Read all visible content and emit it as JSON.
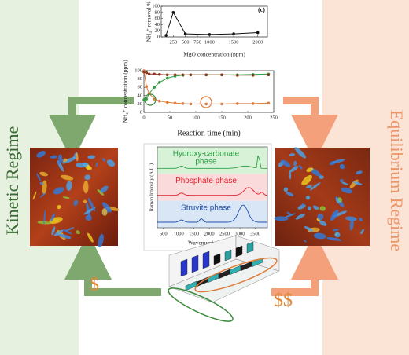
{
  "labels": {
    "kinetic": "Kinetic Regime",
    "equilibrium": "Equilibrium Regime",
    "cost_low": "$",
    "cost_high": "$$"
  },
  "raman": {
    "y_label": "Raman Intensity (A.U.)",
    "x_label": "Wavenumber (cm⁻¹)",
    "xlim": [
      300,
      3900
    ],
    "xticks": [
      500,
      1000,
      1500,
      2000,
      2500,
      3000,
      3500
    ],
    "phases": [
      {
        "lines": [
          "Hydroxy-carbonate",
          "phase"
        ],
        "color": "#2aa040"
      },
      {
        "lines": [
          "Phosphate phase"
        ],
        "color": "#e0202a"
      },
      {
        "lines": [
          "Struvite phase"
        ],
        "color": "#2050b0"
      }
    ]
  },
  "chart_data": [
    {
      "type": "line",
      "title": "(c)",
      "y_label": "NH₄⁺ removal %",
      "x_label": "MgO concentration (ppm)",
      "x": [
        100,
        250,
        500,
        1000,
        1500,
        2000
      ],
      "series": [
        {
          "color": "#111111",
          "values": [
            5,
            80,
            10,
            8,
            10,
            14
          ]
        }
      ],
      "xlim": [
        0,
        2200
      ],
      "xticks": [
        250,
        500,
        750,
        1000,
        1500,
        2000
      ],
      "ylim": [
        0,
        100
      ],
      "yticks": [
        0,
        20,
        40,
        60,
        80,
        100
      ]
    },
    {
      "type": "line",
      "y_label": "NH₄⁺ concentration (ppm)",
      "x_label": "Reaction time (min)",
      "x": [
        0,
        5,
        10,
        20,
        30,
        45,
        60,
        75,
        90,
        120,
        150,
        180,
        210,
        240
      ],
      "series": [
        {
          "color": "#2ea043",
          "values": [
            30,
            32,
            45,
            60,
            72,
            82,
            87,
            89,
            90,
            90,
            90,
            90,
            91,
            92
          ]
        },
        {
          "color": "#e07b39",
          "values": [
            100,
            62,
            45,
            32,
            27,
            24,
            22,
            21,
            20,
            20,
            20,
            21,
            21,
            22
          ]
        },
        {
          "color": "#8b3a1a",
          "values": [
            97,
            95,
            92,
            92,
            91,
            90,
            90,
            90,
            90,
            90,
            90,
            89,
            89,
            90
          ]
        }
      ],
      "xlim": [
        0,
        250
      ],
      "xticks": [
        0,
        50,
        100,
        150,
        200,
        250
      ],
      "ylim": [
        0,
        100
      ],
      "yticks": [
        0,
        20,
        40,
        60,
        80,
        100
      ]
    }
  ]
}
